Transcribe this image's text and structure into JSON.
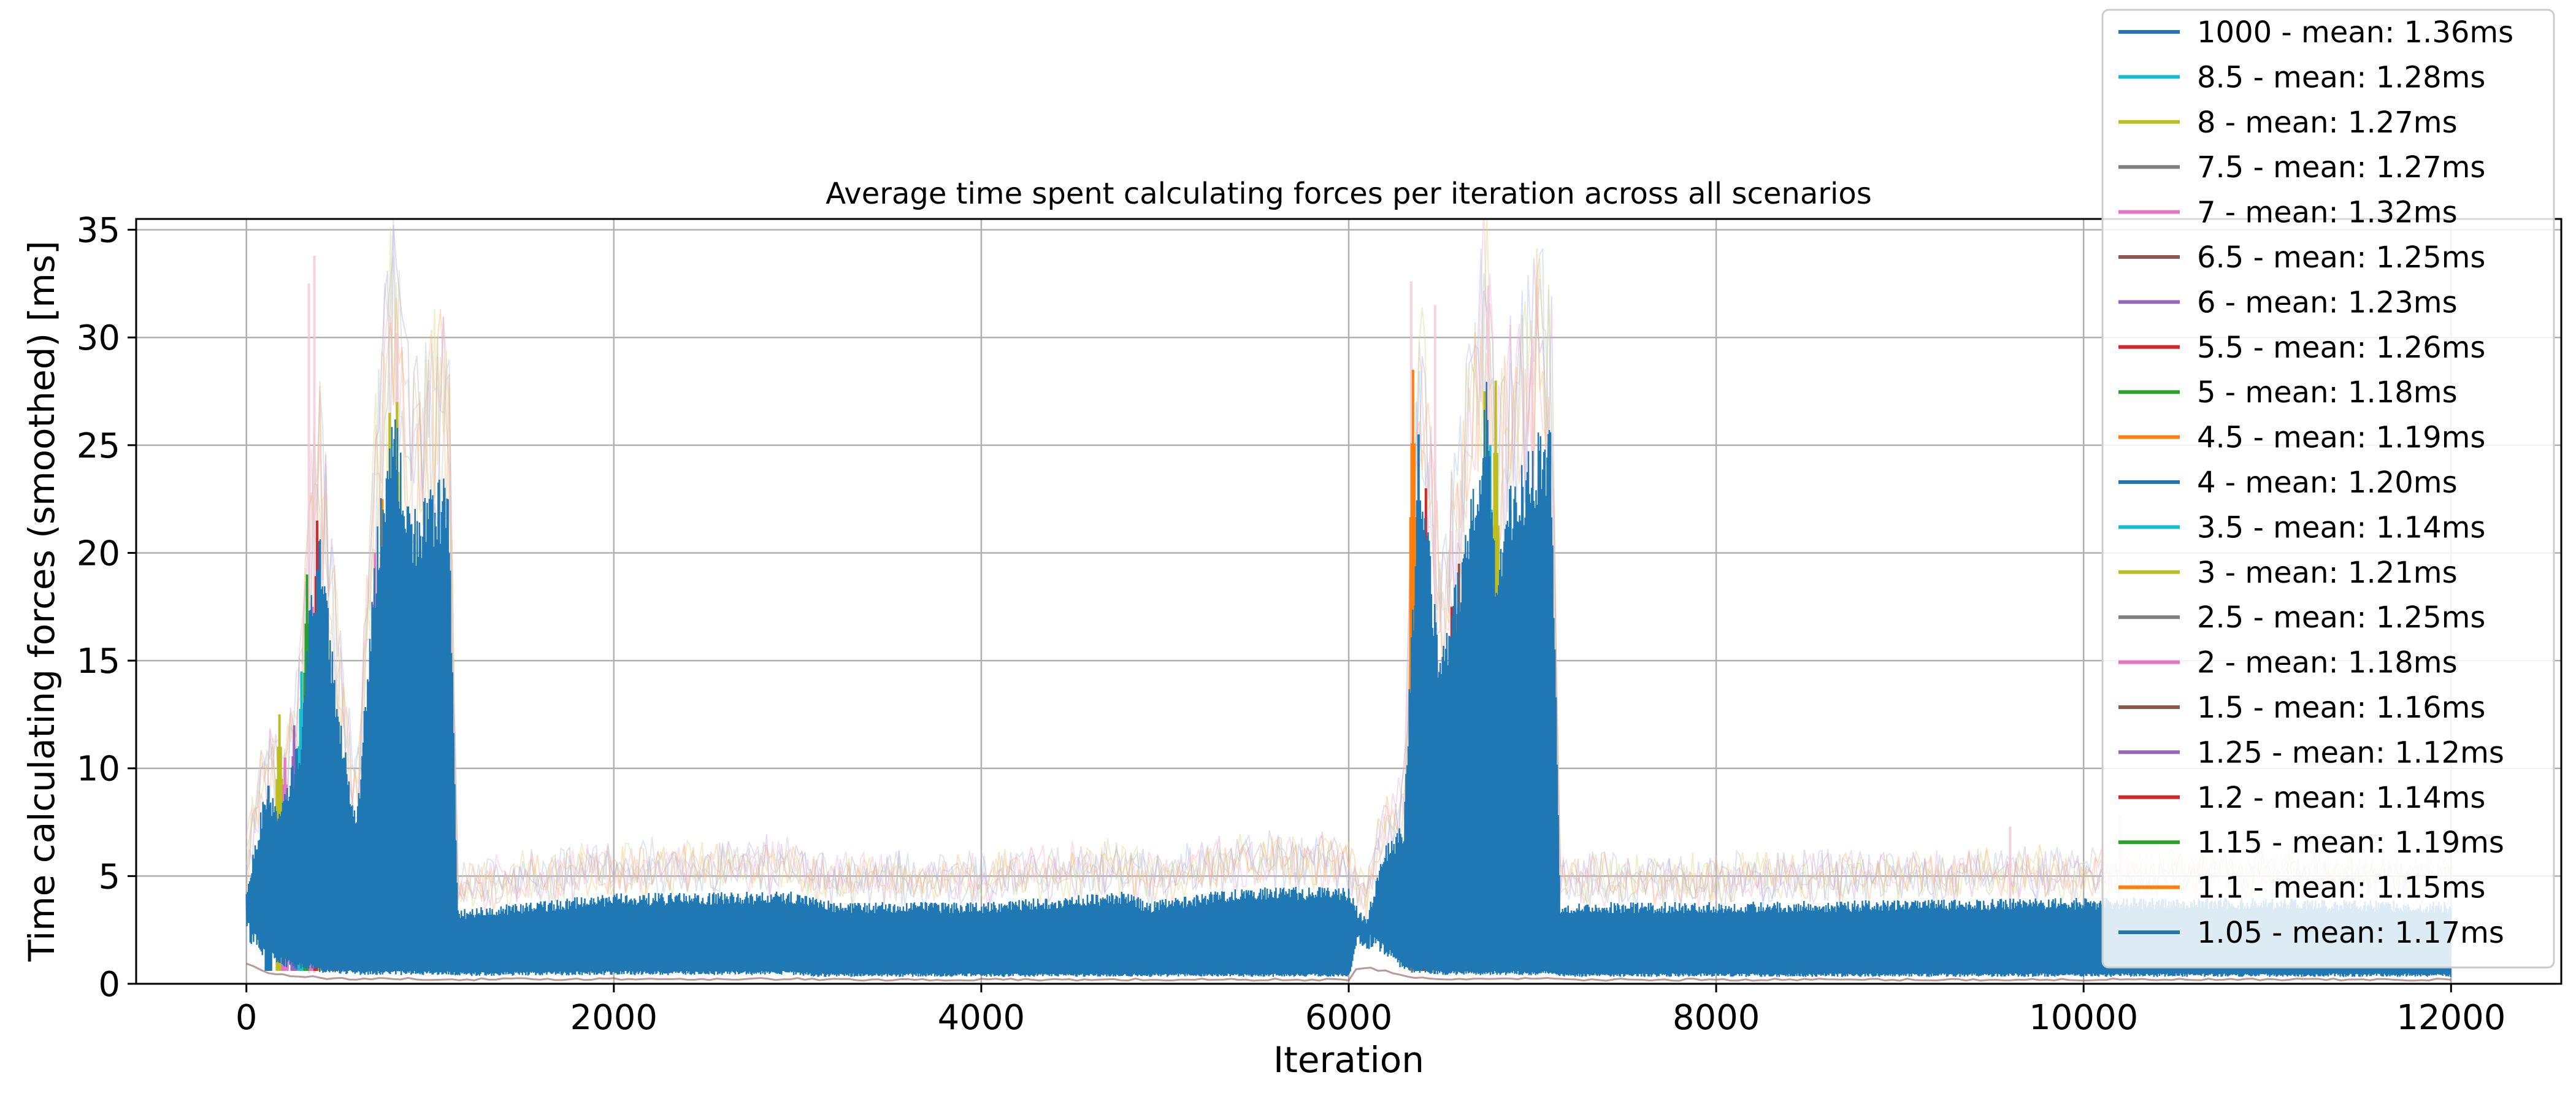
{
  "chart_data": {
    "type": "line",
    "title": "Average time spent calculating forces per iteration across all scenarios",
    "xlabel": "Iteration",
    "ylabel": "Time calculating forces (smoothed) [ms]",
    "xlim": [
      -600,
      12600
    ],
    "ylim": [
      0,
      35.5
    ],
    "xticks": [
      0,
      2000,
      4000,
      6000,
      8000,
      10000,
      12000
    ],
    "yticks": [
      0,
      5,
      10,
      15,
      20,
      25,
      30,
      35
    ],
    "grid": true,
    "legend_position": "top-right",
    "series": [
      {
        "name": "1000 - mean: 1.36ms",
        "color": "#1f77b4"
      },
      {
        "name": "8.5 - mean: 1.28ms",
        "color": "#17becf"
      },
      {
        "name": "8 - mean: 1.27ms",
        "color": "#bcbd22"
      },
      {
        "name": "7.5 - mean: 1.27ms",
        "color": "#7f7f7f"
      },
      {
        "name": "7 - mean: 1.32ms",
        "color": "#e377c2"
      },
      {
        "name": "6.5 - mean: 1.25ms",
        "color": "#8c564b"
      },
      {
        "name": "6 - mean: 1.23ms",
        "color": "#9467bd"
      },
      {
        "name": "5.5 - mean: 1.26ms",
        "color": "#d62728"
      },
      {
        "name": "5 - mean: 1.18ms",
        "color": "#2ca02c"
      },
      {
        "name": "4.5 - mean: 1.19ms",
        "color": "#ff7f0e"
      },
      {
        "name": "4 - mean: 1.20ms",
        "color": "#1f77b4"
      },
      {
        "name": "3.5 - mean: 1.14ms",
        "color": "#17becf"
      },
      {
        "name": "3 - mean: 1.21ms",
        "color": "#bcbd22"
      },
      {
        "name": "2.5 - mean: 1.25ms",
        "color": "#7f7f7f"
      },
      {
        "name": "2 - mean: 1.18ms",
        "color": "#e377c2"
      },
      {
        "name": "1.5 - mean: 1.16ms",
        "color": "#8c564b"
      },
      {
        "name": "1.25 - mean: 1.12ms",
        "color": "#9467bd"
      },
      {
        "name": "1.2 - mean: 1.14ms",
        "color": "#d62728"
      },
      {
        "name": "1.15 - mean: 1.19ms",
        "color": "#2ca02c"
      },
      {
        "name": "1.1 - mean: 1.15ms",
        "color": "#ff7f0e"
      },
      {
        "name": "1.05 - mean: 1.17ms",
        "color": "#1f77b4"
      }
    ],
    "envelope": {
      "x": [
        0,
        100,
        200,
        300,
        350,
        400,
        500,
        600,
        700,
        750,
        800,
        900,
        1000,
        1050,
        1100,
        1150,
        1200,
        2000,
        3000,
        3100,
        3200,
        4000,
        4800,
        4900,
        5400,
        5500,
        6000,
        6050,
        6100,
        6200,
        6300,
        6350,
        6400,
        6500,
        6600,
        6700,
        6750,
        6800,
        6900,
        7000,
        7050,
        7100,
        7150,
        7200,
        8000,
        9000,
        10000,
        11000,
        12000
      ],
      "high": [
        4.5,
        9.0,
        8.5,
        12,
        18.5,
        21.0,
        13,
        7.5,
        20,
        24.5,
        27.0,
        22,
        23,
        23.5,
        23.5,
        3.5,
        3.5,
        4.2,
        4.3,
        4.0,
        3.8,
        3.8,
        4.3,
        3.8,
        4.5,
        4.5,
        4.5,
        3.5,
        3.2,
        6.5,
        7.5,
        18,
        24,
        15,
        19.5,
        25,
        28,
        20,
        24,
        25,
        26,
        26,
        3.8,
        3.8,
        3.8,
        3.9,
        4.0,
        4.0,
        3.8
      ],
      "low": [
        2.5,
        1.5,
        1.0,
        0.8,
        0.8,
        0.6,
        0.6,
        0.5,
        0.5,
        0.5,
        0.5,
        0.5,
        0.5,
        0.5,
        0.5,
        0.45,
        0.45,
        0.5,
        0.5,
        0.4,
        0.4,
        0.4,
        0.4,
        0.4,
        0.4,
        0.4,
        0.4,
        2.0,
        2.0,
        1.5,
        0.8,
        0.6,
        0.6,
        0.5,
        0.5,
        0.5,
        0.5,
        0.5,
        0.5,
        0.5,
        0.5,
        0.5,
        0.4,
        0.4,
        0.4,
        0.4,
        0.4,
        0.4,
        0.4
      ]
    },
    "spikes": [
      {
        "x": 120,
        "y": 9.2,
        "color": "#1f77b4"
      },
      {
        "x": 180,
        "y": 12.5,
        "color": "#bcbd22"
      },
      {
        "x": 210,
        "y": 10.5,
        "color": "#e377c2"
      },
      {
        "x": 260,
        "y": 12.0,
        "color": "#9467bd"
      },
      {
        "x": 300,
        "y": 14.5,
        "color": "#17becf"
      },
      {
        "x": 330,
        "y": 19.0,
        "color": "#2ca02c"
      },
      {
        "x": 360,
        "y": 17.5,
        "color": "#e377c2"
      },
      {
        "x": 385,
        "y": 21.5,
        "color": "#d62728"
      },
      {
        "x": 410,
        "y": 18.0,
        "color": "#bcbd22"
      },
      {
        "x": 480,
        "y": 12.0,
        "color": "#8c564b"
      },
      {
        "x": 520,
        "y": 9.5,
        "color": "#e377c2"
      },
      {
        "x": 700,
        "y": 20.0,
        "color": "#e377c2"
      },
      {
        "x": 740,
        "y": 22.5,
        "color": "#ff7f0e"
      },
      {
        "x": 780,
        "y": 26.5,
        "color": "#bcbd22"
      },
      {
        "x": 820,
        "y": 27.0,
        "color": "#bcbd22"
      },
      {
        "x": 6350,
        "y": 28.5,
        "color": "#ff7f0e"
      },
      {
        "x": 6380,
        "y": 25.5,
        "color": "#1f77b4"
      },
      {
        "x": 6420,
        "y": 23.0,
        "color": "#d62728"
      },
      {
        "x": 6480,
        "y": 15.0,
        "color": "#e377c2"
      },
      {
        "x": 6560,
        "y": 17.5,
        "color": "#d62728"
      },
      {
        "x": 6600,
        "y": 19.5,
        "color": "#8c564b"
      },
      {
        "x": 6740,
        "y": 27.5,
        "color": "#bcbd22"
      },
      {
        "x": 6770,
        "y": 25.0,
        "color": "#17becf"
      },
      {
        "x": 6800,
        "y": 28.0,
        "color": "#bcbd22"
      },
      {
        "x": 6880,
        "y": 22.0,
        "color": "#17becf"
      }
    ],
    "faint_peaks": [
      {
        "x": 340,
        "y": 32.5
      },
      {
        "x": 370,
        "y": 33.8
      },
      {
        "x": 6340,
        "y": 32.6
      },
      {
        "x": 6470,
        "y": 31.5
      },
      {
        "x": 6760,
        "y": 32.4
      },
      {
        "x": 820,
        "y": 30.2
      },
      {
        "x": 7000,
        "y": 30.0
      },
      {
        "x": 10200,
        "y": 7.8
      },
      {
        "x": 9600,
        "y": 7.3
      }
    ]
  }
}
